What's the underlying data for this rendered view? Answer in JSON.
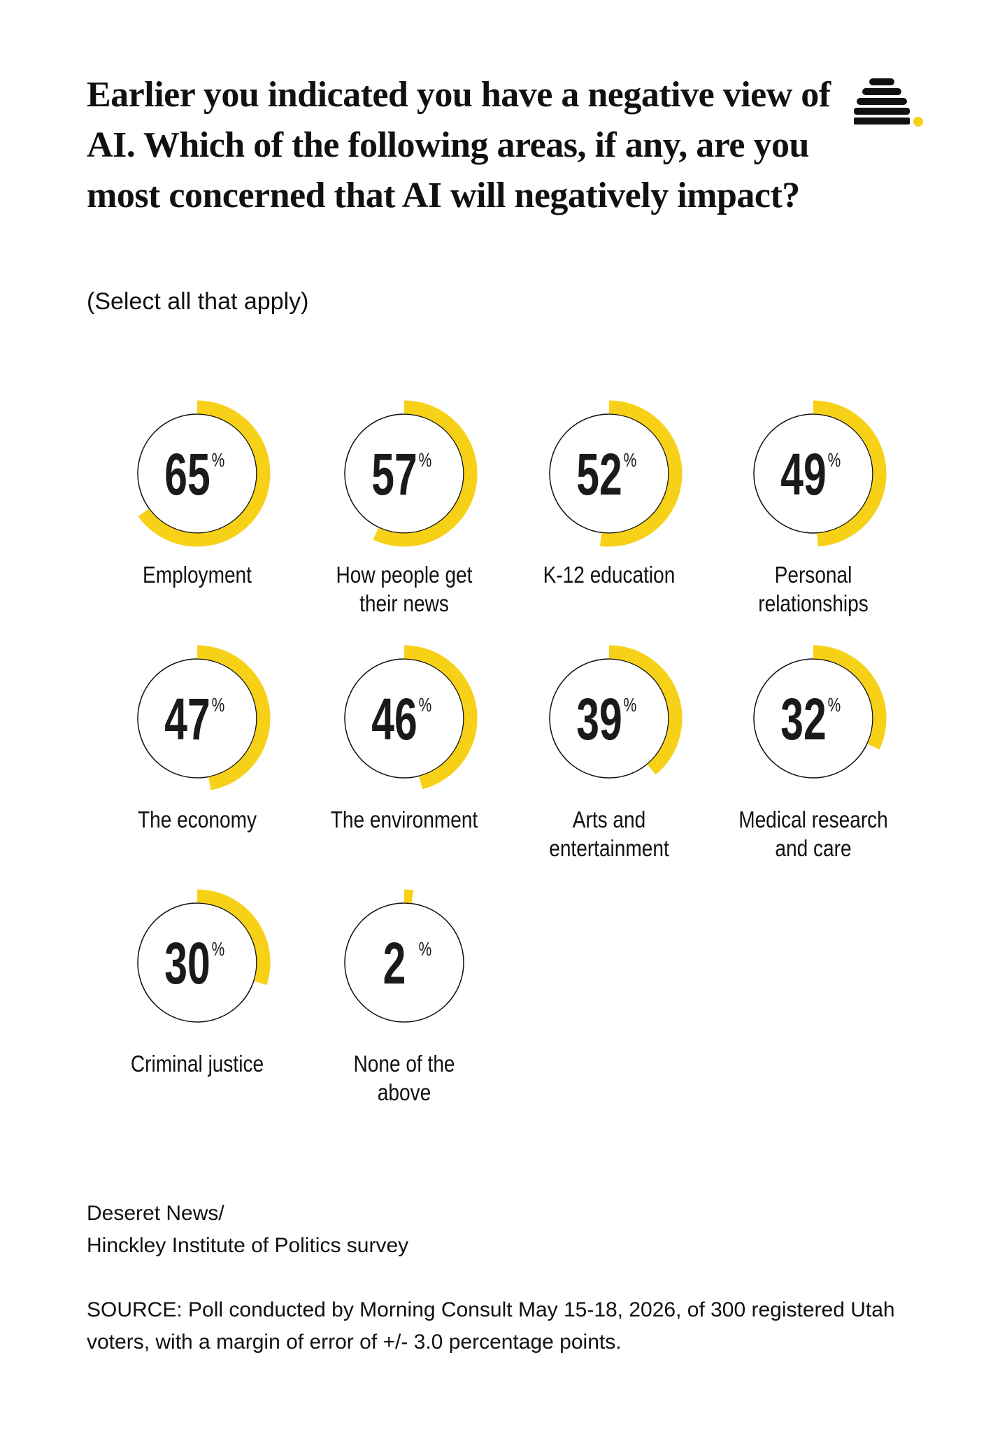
{
  "header": {
    "title": "Earlier you indicated you have a negative view of AI. Which of the following areas, if any, are you most concerned that AI will negatively impact?",
    "subtitle": "(Select all that apply)"
  },
  "chart_data": {
    "type": "donut-grid",
    "unit": "%",
    "color": "#f7d117",
    "ylim": [
      0,
      100
    ],
    "categories": [
      "Employment",
      "How people get their news",
      "K-12 education",
      "Personal relationships",
      "The economy",
      "The environment",
      "Arts and entertainment",
      "Medical research and care",
      "Criminal justice",
      "None of the above"
    ],
    "values": [
      65,
      57,
      52,
      49,
      47,
      46,
      39,
      32,
      30,
      2
    ]
  },
  "footer": {
    "credit": [
      "Deseret News/",
      "Hinckley Institute of Politics survey"
    ],
    "source": "SOURCE: Poll conducted by Morning Consult May 15-18, 2026, of 300 registered Utah voters, with a margin of error of +/- 3.0 percentage points."
  }
}
